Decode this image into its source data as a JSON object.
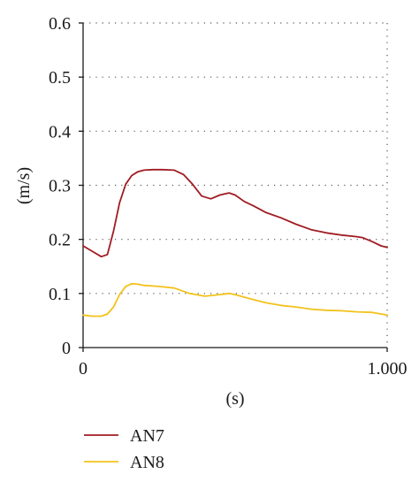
{
  "chart_data": {
    "type": "line",
    "xlabel": "(s)",
    "ylabel": "(m/s)",
    "xlim": [
      0,
      1
    ],
    "ylim": [
      0,
      0.6
    ],
    "x_ticks": [
      {
        "value": 0,
        "label": "0"
      },
      {
        "value": 1,
        "label": "1.000"
      }
    ],
    "y_ticks": [
      {
        "value": 0,
        "label": "0"
      },
      {
        "value": 0.1,
        "label": "0.1"
      },
      {
        "value": 0.2,
        "label": "0.2"
      },
      {
        "value": 0.3,
        "label": "0.3"
      },
      {
        "value": 0.4,
        "label": "0.4"
      },
      {
        "value": 0.5,
        "label": "0.5"
      },
      {
        "value": 0.6,
        "label": "0.6"
      }
    ],
    "grid": "horizontal dotted",
    "legend_position": "bottom-left",
    "series": [
      {
        "name": "AN7",
        "color": "#a01c22",
        "x": [
          0,
          0.03,
          0.06,
          0.08,
          0.1,
          0.12,
          0.14,
          0.16,
          0.18,
          0.2,
          0.23,
          0.26,
          0.3,
          0.33,
          0.36,
          0.39,
          0.42,
          0.45,
          0.48,
          0.5,
          0.53,
          0.56,
          0.6,
          0.65,
          0.7,
          0.75,
          0.8,
          0.85,
          0.9,
          0.92,
          0.95,
          0.98,
          1.0
        ],
        "y": [
          0.188,
          0.178,
          0.168,
          0.172,
          0.215,
          0.268,
          0.302,
          0.318,
          0.325,
          0.328,
          0.329,
          0.329,
          0.328,
          0.32,
          0.302,
          0.28,
          0.275,
          0.282,
          0.286,
          0.282,
          0.27,
          0.262,
          0.25,
          0.24,
          0.228,
          0.218,
          0.212,
          0.208,
          0.205,
          0.203,
          0.196,
          0.188,
          0.185
        ]
      },
      {
        "name": "AN8",
        "color": "#f2c21b",
        "x": [
          0,
          0.03,
          0.06,
          0.08,
          0.1,
          0.12,
          0.14,
          0.16,
          0.18,
          0.2,
          0.25,
          0.3,
          0.35,
          0.4,
          0.45,
          0.48,
          0.5,
          0.55,
          0.6,
          0.65,
          0.7,
          0.75,
          0.8,
          0.85,
          0.9,
          0.95,
          1.0
        ],
        "y": [
          0.06,
          0.058,
          0.058,
          0.062,
          0.075,
          0.098,
          0.113,
          0.118,
          0.117,
          0.115,
          0.113,
          0.11,
          0.1,
          0.095,
          0.098,
          0.1,
          0.098,
          0.09,
          0.083,
          0.078,
          0.075,
          0.071,
          0.069,
          0.068,
          0.066,
          0.065,
          0.06
        ]
      }
    ]
  }
}
